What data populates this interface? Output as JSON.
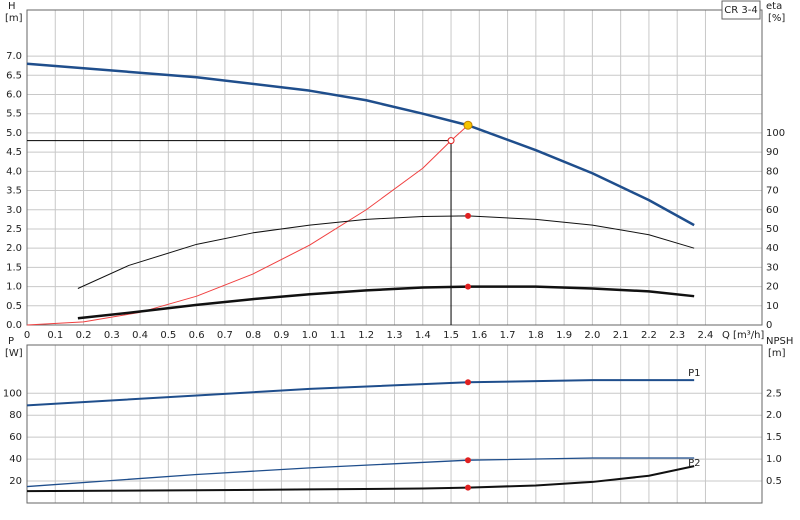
{
  "chart_data": [
    {
      "type": "line",
      "title": "CR 3-4",
      "xlabel": "Q [m³/h]",
      "ylabel": "H",
      "yunit": "[m]",
      "y2label": "eta",
      "y2unit": "[%]",
      "xlim": [
        0,
        2.6
      ],
      "ylim": [
        0,
        8.2
      ],
      "y2lim": [
        0,
        164
      ],
      "grid": true,
      "xticks": [
        0,
        0.1,
        0.2,
        0.3,
        0.4,
        0.5,
        0.6,
        0.7,
        0.8,
        0.9,
        {
          "value": 1,
          "label": "1.0"
        },
        1.1,
        1.2,
        1.3,
        1.4,
        1.5,
        1.6,
        1.7,
        1.8,
        1.9,
        {
          "value": 2,
          "label": "2.0"
        },
        2.1,
        2.2,
        2.3,
        2.4
      ],
      "yticks": [
        {
          "value": 0,
          "label": "0.0"
        },
        0.5,
        {
          "value": 1,
          "label": "1.0"
        },
        1.5,
        {
          "value": 2,
          "label": "2.0"
        },
        2.5,
        {
          "value": 3,
          "label": "3.0"
        },
        3.5,
        {
          "value": 4,
          "label": "4.0"
        },
        4.5,
        {
          "value": 5,
          "label": "5.0"
        },
        5.5,
        {
          "value": 6,
          "label": "6.0"
        },
        6.5,
        {
          "value": 7,
          "label": "7.0"
        }
      ],
      "y2ticks": [
        0,
        10,
        20,
        30,
        40,
        50,
        60,
        70,
        80,
        90,
        100
      ],
      "series": [
        {
          "color": "#1f4e8c",
          "line_width": 2.5,
          "x": [
            0,
            0.6,
            1.0,
            1.2,
            1.4,
            1.56,
            1.8,
            2.0,
            2.2,
            2.36
          ],
          "values": [
            6.8,
            6.45,
            6.1,
            5.85,
            5.5,
            5.2,
            4.55,
            3.95,
            3.25,
            2.6
          ]
        },
        {
          "color": "#f04040",
          "line_width": 1,
          "x": [
            0,
            0.2,
            0.4,
            0.6,
            0.8,
            1.0,
            1.2,
            1.4,
            1.5,
            1.56
          ],
          "values": [
            0,
            0.08,
            0.33,
            0.75,
            1.33,
            2.08,
            3.0,
            4.08,
            4.8,
            5.2
          ]
        },
        {
          "color": "#111111",
          "line_width": 1,
          "axis": "y2",
          "x": [
            0.18,
            0.36,
            0.6,
            0.8,
            1.0,
            1.2,
            1.4,
            1.56,
            1.8,
            2.0,
            2.2,
            2.36
          ],
          "values": [
            19,
            31,
            42,
            48,
            52,
            55,
            56.5,
            56.8,
            55,
            52,
            47,
            40
          ]
        },
        {
          "color": "#111111",
          "line_width": 2.5,
          "axis": "y2",
          "x": [
            0.18,
            0.4,
            0.6,
            0.8,
            1.0,
            1.2,
            1.4,
            1.56,
            1.8,
            2.0,
            2.2,
            2.36
          ],
          "values": [
            3.5,
            7,
            10.5,
            13.5,
            16,
            18,
            19.5,
            20,
            20,
            19,
            17.5,
            15
          ]
        }
      ],
      "duty_point": {
        "x": 1.5,
        "value": 4.8
      },
      "points": [
        {
          "x": 1.56,
          "value": 5.2,
          "color": "#f5c400"
        },
        {
          "x": 1.56,
          "value": 56.8,
          "color": "#e02020",
          "axis": "y2"
        },
        {
          "x": 1.56,
          "value": 20,
          "color": "#e02020",
          "axis": "y2"
        }
      ]
    },
    {
      "type": "line",
      "ylabel": "P",
      "yunit": "[W]",
      "y2label": "NPSH",
      "y2unit": "[m]",
      "xlim": [
        0,
        2.6
      ],
      "ylim": [
        0,
        144
      ],
      "y2lim": [
        0,
        3.6
      ],
      "grid": true,
      "yticks": [
        20,
        40,
        60,
        80,
        100
      ],
      "y2ticks": [
        0.5,
        {
          "value": 1,
          "label": "1.0"
        },
        1.5,
        {
          "value": 2,
          "label": "2.0"
        },
        2.5
      ],
      "series": [
        {
          "name": "P1",
          "color": "#1f4e8c",
          "line_width": 2,
          "x": [
            0,
            0.6,
            1.0,
            1.56,
            2.0,
            2.36
          ],
          "values": [
            89,
            98,
            104,
            110,
            112,
            112
          ]
        },
        {
          "name": "P2",
          "color": "#1f4e8c",
          "line_width": 1.3,
          "x": [
            0,
            0.6,
            1.0,
            1.56,
            2.0,
            2.36
          ],
          "values": [
            15,
            26,
            32,
            39,
            41,
            41
          ]
        },
        {
          "color": "#111111",
          "line_width": 2,
          "axis": "y2",
          "x": [
            0,
            0.6,
            1.0,
            1.4,
            1.56,
            1.8,
            2.0,
            2.2,
            2.36
          ],
          "values": [
            0.27,
            0.29,
            0.31,
            0.33,
            0.35,
            0.4,
            0.48,
            0.62,
            0.84
          ]
        }
      ],
      "points": [
        {
          "x": 1.56,
          "value": 110,
          "color": "#e02020"
        },
        {
          "x": 1.56,
          "value": 39,
          "color": "#e02020"
        },
        {
          "x": 1.56,
          "value": 0.35,
          "color": "#e02020",
          "axis": "y2"
        }
      ]
    }
  ]
}
